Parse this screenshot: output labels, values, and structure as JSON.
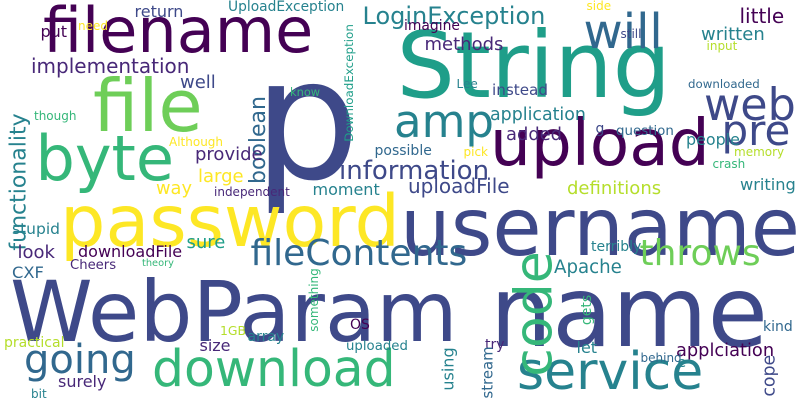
{
  "colors": {
    "background": "#ffffff",
    "palette": [
      "#440154",
      "#482878",
      "#3e4989",
      "#31688e",
      "#26828e",
      "#1f9e89",
      "#35b779",
      "#6ece58",
      "#b5de2b",
      "#fde725"
    ]
  },
  "words": [
    {
      "text": "p",
      "color": "#3e4989"
    },
    {
      "text": "String",
      "color": "#1f9e89"
    },
    {
      "text": "WebParam",
      "color": "#3e4989"
    },
    {
      "text": "name",
      "color": "#3e4989"
    },
    {
      "text": "username",
      "color": "#3e4989"
    },
    {
      "text": "password",
      "color": "#fde725"
    },
    {
      "text": "filename",
      "color": "#440154"
    },
    {
      "text": "download",
      "color": "#35b779"
    },
    {
      "text": "upload",
      "color": "#440154"
    },
    {
      "text": "file",
      "color": "#6ece58"
    },
    {
      "text": "byte",
      "color": "#35b779"
    },
    {
      "text": "service",
      "color": "#26828e"
    },
    {
      "text": "will",
      "color": "#31688e"
    },
    {
      "text": "web",
      "color": "#3e4989"
    },
    {
      "text": "pre",
      "color": "#3e4989"
    },
    {
      "text": "amp",
      "color": "#26828e"
    },
    {
      "text": "fileContents",
      "color": "#31688e"
    },
    {
      "text": "going",
      "color": "#31688e"
    },
    {
      "text": "code",
      "color": "#35b779"
    },
    {
      "text": "throws",
      "color": "#6ece58"
    },
    {
      "text": "information",
      "color": "#3e4989"
    },
    {
      "text": "LoginException",
      "color": "#26828e"
    },
    {
      "text": "application",
      "color": "#26828e"
    },
    {
      "text": "implementation",
      "color": "#482878"
    },
    {
      "text": "functionality",
      "color": "#26828e"
    },
    {
      "text": "boolean",
      "color": "#31688e"
    },
    {
      "text": "uploadFile",
      "color": "#3e4989"
    },
    {
      "text": "definitions",
      "color": "#b5de2b"
    },
    {
      "text": "writing",
      "color": "#26828e"
    },
    {
      "text": "people",
      "color": "#26828e"
    },
    {
      "text": "written",
      "color": "#26828e"
    },
    {
      "text": "little",
      "color": "#440154"
    },
    {
      "text": "methods",
      "color": "#482878"
    },
    {
      "text": "well",
      "color": "#3e4989"
    },
    {
      "text": "added",
      "color": "#482878"
    },
    {
      "text": "instead",
      "color": "#3e4989"
    },
    {
      "text": "downloaded",
      "color": "#31688e"
    },
    {
      "text": "question",
      "color": "#31688e"
    },
    {
      "text": "provide",
      "color": "#482878"
    },
    {
      "text": "large",
      "color": "#fde725"
    },
    {
      "text": "way",
      "color": "#fde725"
    },
    {
      "text": "moment",
      "color": "#26828e"
    },
    {
      "text": "possible",
      "color": "#31688e"
    },
    {
      "text": "Apache",
      "color": "#26828e"
    },
    {
      "text": "applciation",
      "color": "#440154"
    },
    {
      "text": "cope",
      "color": "#3e4989"
    },
    {
      "text": "look",
      "color": "#482878"
    },
    {
      "text": "sure",
      "color": "#1f9e89"
    },
    {
      "text": "downloadFile",
      "color": "#440154"
    },
    {
      "text": "CXF",
      "color": "#31688e"
    },
    {
      "text": "stupid",
      "color": "#26828e"
    },
    {
      "text": "UploadException",
      "color": "#26828e"
    },
    {
      "text": "return",
      "color": "#3e4989"
    },
    {
      "text": "imagine",
      "color": "#440154"
    },
    {
      "text": "let",
      "color": "#26828e"
    },
    {
      "text": "try",
      "color": "#482878"
    },
    {
      "text": "uploaded",
      "color": "#26828e"
    },
    {
      "text": "using",
      "color": "#26828e"
    },
    {
      "text": "stream",
      "color": "#31688e"
    },
    {
      "text": "size",
      "color": "#482878"
    },
    {
      "text": "array",
      "color": "#26828e"
    },
    {
      "text": "surely",
      "color": "#482878"
    },
    {
      "text": "OS",
      "color": "#440154"
    },
    {
      "text": "gets",
      "color": "#35b779"
    },
    {
      "text": "kind",
      "color": "#31688e"
    },
    {
      "text": "terribly",
      "color": "#26828e"
    },
    {
      "text": "memory",
      "color": "#b5de2b"
    },
    {
      "text": "crash",
      "color": "#35b779"
    },
    {
      "text": "put",
      "color": "#440154"
    },
    {
      "text": "need",
      "color": "#fde725"
    },
    {
      "text": "side",
      "color": "#fde725"
    },
    {
      "text": "still",
      "color": "#3e4989"
    },
    {
      "text": "input",
      "color": "#b5de2b"
    },
    {
      "text": "Lee",
      "color": "#26828e"
    },
    {
      "text": "know",
      "color": "#35b779"
    },
    {
      "text": "DownloadException",
      "color": "#1f9e89"
    },
    {
      "text": "independent",
      "color": "#482878"
    },
    {
      "text": "Although",
      "color": "#fde725"
    },
    {
      "text": "though",
      "color": "#35b779"
    },
    {
      "text": "pick",
      "color": "#fde725"
    },
    {
      "text": "g",
      "color": "#3e4989"
    },
    {
      "text": "theory",
      "color": "#35b779"
    },
    {
      "text": "Cheers",
      "color": "#482878"
    },
    {
      "text": "1GB",
      "color": "#b5de2b"
    },
    {
      "text": "something",
      "color": "#35b779"
    },
    {
      "text": "practical",
      "color": "#b5de2b"
    },
    {
      "text": "bit",
      "color": "#26828e"
    },
    {
      "text": "behind",
      "color": "#31688e"
    },
    {
      "text": "e",
      "color": "#26828e"
    }
  ]
}
